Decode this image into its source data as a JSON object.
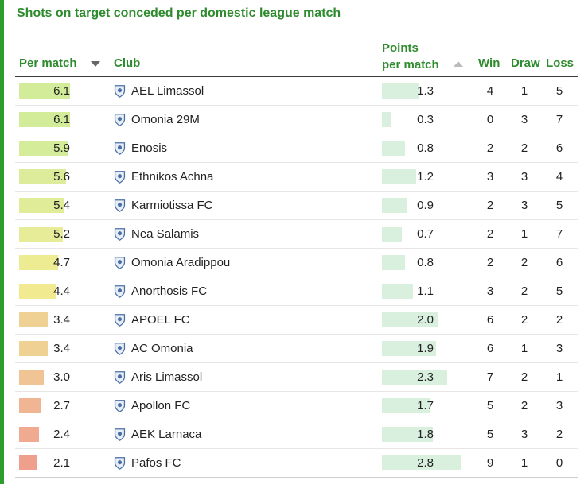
{
  "title": "Shots on target conceded per domestic league match",
  "headers": {
    "per_match": "Per match",
    "club": "Club",
    "ppm_line1": "Points",
    "ppm_line2": "per match",
    "win": "Win",
    "draw": "Draw",
    "loss": "Loss"
  },
  "colors": {
    "accent": "#2e9d2e",
    "points_bar": "#d9f0df"
  },
  "chart_data": {
    "type": "table",
    "columns": [
      "Per match",
      "Club",
      "Points per match",
      "Win",
      "Draw",
      "Loss"
    ],
    "per_match_max": 6.1,
    "points_max": 2.8,
    "rows": [
      {
        "per_match": "6.1",
        "club": "AEL Limassol",
        "logo": "ael-limassol-crest-icon",
        "points": "1.3",
        "win": "4",
        "draw": "1",
        "loss": "5",
        "color": "#d2ec9a"
      },
      {
        "per_match": "6.1",
        "club": "Omonia 29M",
        "logo": "omonia-29m-crest-icon",
        "points": "0.3",
        "win": "0",
        "draw": "3",
        "loss": "7",
        "color": "#d2ec9a"
      },
      {
        "per_match": "5.9",
        "club": "Enosis",
        "logo": "enosis-crest-icon",
        "points": "0.8",
        "win": "2",
        "draw": "2",
        "loss": "6",
        "color": "#d5ec9a"
      },
      {
        "per_match": "5.6",
        "club": "Ethnikos Achna",
        "logo": "ethnikos-achna-crest-icon",
        "points": "1.2",
        "win": "3",
        "draw": "3",
        "loss": "4",
        "color": "#dcec9a"
      },
      {
        "per_match": "5.4",
        "club": "Karmiotissa FC",
        "logo": "karmiotissa-crest-icon",
        "points": "0.9",
        "win": "2",
        "draw": "3",
        "loss": "5",
        "color": "#e1ec99"
      },
      {
        "per_match": "5.2",
        "club": "Nea Salamis",
        "logo": "nea-salamis-crest-icon",
        "points": "0.7",
        "win": "2",
        "draw": "1",
        "loss": "7",
        "color": "#e6ec98"
      },
      {
        "per_match": "4.7",
        "club": "Omonia Aradippou",
        "logo": "omonia-aradippou-crest-icon",
        "points": "0.8",
        "win": "2",
        "draw": "2",
        "loss": "6",
        "color": "#eeec93"
      },
      {
        "per_match": "4.4",
        "club": "Anorthosis FC",
        "logo": "anorthosis-crest-icon",
        "points": "1.1",
        "win": "3",
        "draw": "2",
        "loss": "5",
        "color": "#f1ea90"
      },
      {
        "per_match": "3.4",
        "club": "APOEL FC",
        "logo": "apoel-crest-icon",
        "points": "2.0",
        "win": "6",
        "draw": "2",
        "loss": "2",
        "color": "#f0d194"
      },
      {
        "per_match": "3.4",
        "club": "AC Omonia",
        "logo": "ac-omonia-crest-icon",
        "points": "1.9",
        "win": "6",
        "draw": "1",
        "loss": "3",
        "color": "#f0d194"
      },
      {
        "per_match": "3.0",
        "club": "Aris Limassol",
        "logo": "aris-limassol-crest-icon",
        "points": "2.3",
        "win": "7",
        "draw": "2",
        "loss": "1",
        "color": "#f0c494"
      },
      {
        "per_match": "2.7",
        "club": "Apollon FC",
        "logo": "apollon-crest-icon",
        "points": "1.7",
        "win": "5",
        "draw": "2",
        "loss": "3",
        "color": "#f0b592"
      },
      {
        "per_match": "2.4",
        "club": "AEK Larnaca",
        "logo": "aek-larnaca-crest-icon",
        "points": "1.8",
        "win": "5",
        "draw": "3",
        "loss": "2",
        "color": "#efaa8f"
      },
      {
        "per_match": "2.1",
        "club": "Pafos FC",
        "logo": "pafos-crest-icon",
        "points": "2.8",
        "win": "9",
        "draw": "1",
        "loss": "0",
        "color": "#eea08c"
      }
    ]
  }
}
